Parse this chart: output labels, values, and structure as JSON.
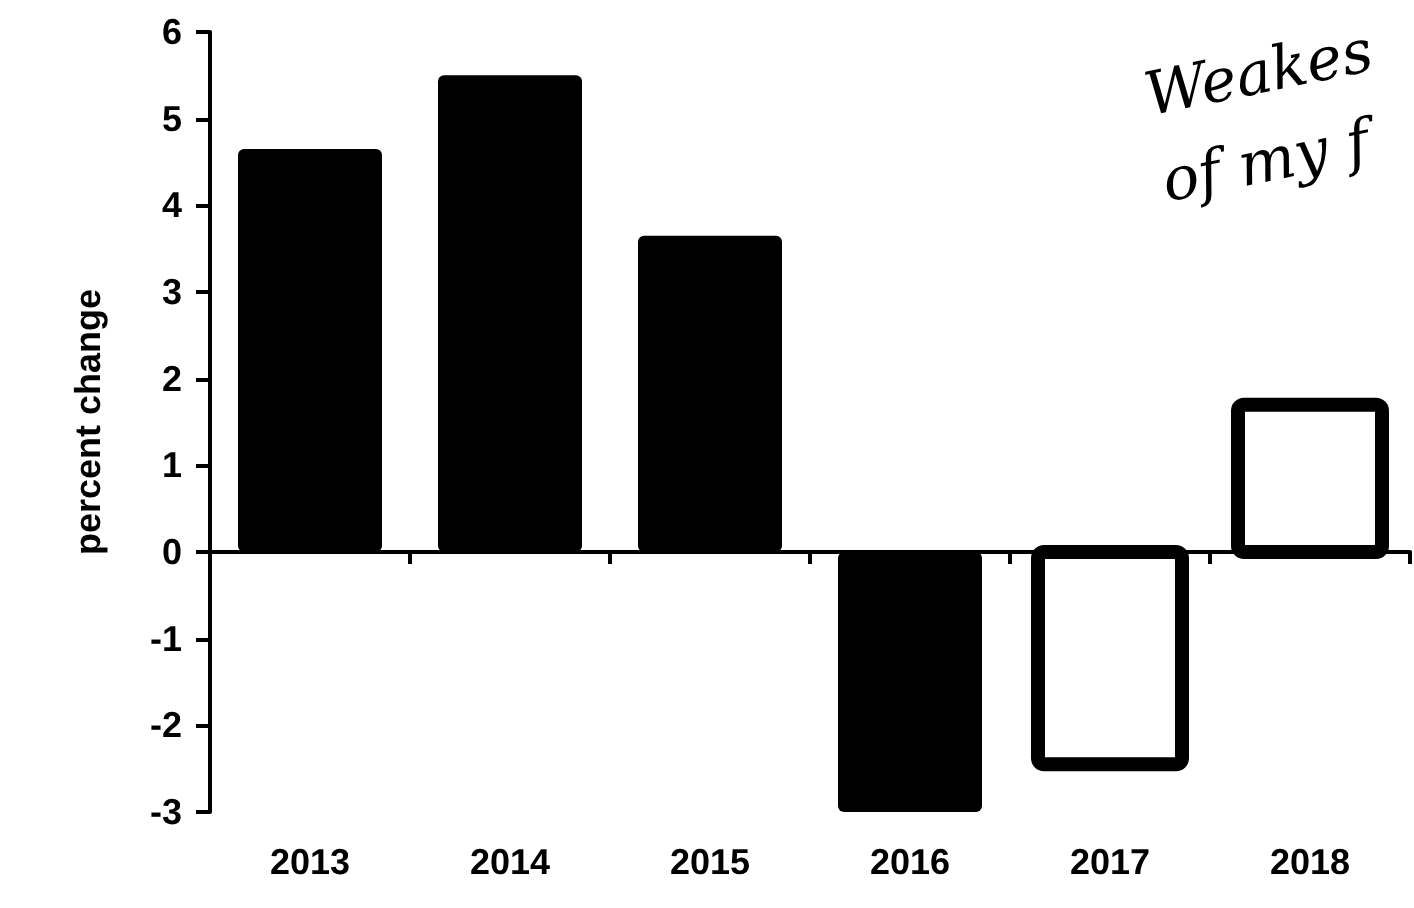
{
  "chart_data": {
    "type": "bar",
    "ylabel": "percent change",
    "categories": [
      "2013",
      "2014",
      "2015",
      "2016",
      "2017",
      "2018"
    ],
    "values": [
      4.65,
      5.5,
      3.65,
      -3,
      -2.45,
      1.7
    ],
    "colors": [
      "#000000",
      "#000000",
      "#000000",
      "#000000",
      "#ffffff",
      "#ffffff"
    ],
    "ylim": [
      -3,
      6
    ],
    "yticks": [
      -3,
      -2,
      -1,
      0,
      1,
      2,
      3,
      4,
      5,
      6
    ],
    "annotations": [
      "Weakes\nof my f"
    ]
  }
}
